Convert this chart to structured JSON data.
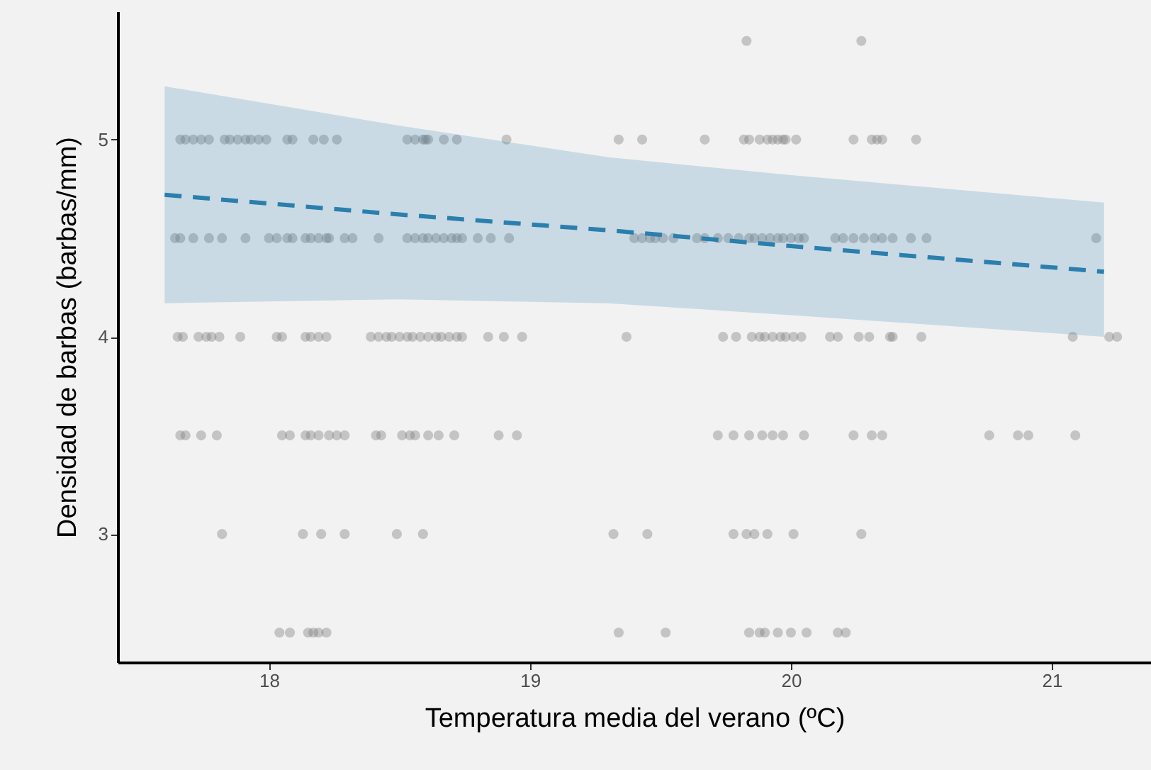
{
  "chart_data": {
    "type": "scatter",
    "xlabel": "Temperatura media del verano (ºC)",
    "ylabel": "Densidad de barbas (barbas/mm)",
    "xlim": [
      17.42,
      21.38
    ],
    "ylim": [
      2.35,
      5.65
    ],
    "xticks": [
      18,
      19,
      20,
      21
    ],
    "yticks": [
      3,
      4,
      5
    ],
    "grid": false,
    "marker": "circle",
    "series": [
      {
        "color": "#808080",
        "x": [
          19.83,
          20.27,
          17.66,
          17.68,
          17.71,
          17.74,
          17.77,
          17.83,
          17.85,
          17.88,
          17.91,
          17.93,
          17.96,
          17.99,
          18.07,
          18.09,
          18.17,
          18.21,
          18.26,
          18.53,
          18.56,
          18.59,
          18.6,
          18.61,
          18.67,
          18.72,
          18.91,
          19.34,
          19.43,
          19.67,
          19.82,
          19.84,
          19.88,
          19.91,
          19.93,
          19.95,
          19.97,
          19.98,
          20.02,
          20.24,
          20.31,
          20.33,
          20.35,
          20.48,
          17.64,
          17.66,
          17.71,
          17.77,
          17.82,
          17.91,
          18.0,
          18.03,
          18.07,
          18.09,
          18.14,
          18.16,
          18.19,
          18.22,
          18.23,
          18.29,
          18.32,
          18.42,
          18.53,
          18.56,
          18.59,
          18.61,
          18.64,
          18.67,
          18.7,
          18.72,
          18.74,
          18.8,
          18.85,
          18.92,
          19.4,
          19.43,
          19.46,
          19.48,
          19.51,
          19.55,
          19.64,
          19.67,
          19.72,
          19.76,
          19.8,
          19.84,
          19.86,
          19.89,
          19.92,
          19.95,
          19.97,
          20.0,
          20.03,
          20.05,
          20.17,
          20.2,
          20.24,
          20.28,
          20.32,
          20.35,
          20.39,
          20.46,
          20.52,
          21.17,
          17.65,
          17.67,
          17.73,
          17.76,
          17.78,
          17.81,
          17.89,
          18.03,
          18.05,
          18.14,
          18.16,
          18.19,
          18.22,
          18.39,
          18.42,
          18.45,
          18.47,
          18.5,
          18.53,
          18.55,
          18.58,
          18.61,
          18.64,
          18.66,
          18.69,
          18.72,
          18.74,
          18.84,
          18.9,
          18.97,
          19.37,
          19.74,
          19.79,
          19.85,
          19.88,
          19.9,
          19.93,
          19.96,
          19.98,
          20.01,
          20.04,
          20.15,
          20.18,
          20.26,
          20.3,
          20.38,
          20.39,
          20.5,
          21.08,
          21.22,
          21.25,
          17.66,
          17.68,
          17.74,
          17.8,
          18.05,
          18.08,
          18.14,
          18.16,
          18.19,
          18.23,
          18.26,
          18.29,
          18.41,
          18.43,
          18.51,
          18.54,
          18.56,
          18.61,
          18.65,
          18.71,
          18.88,
          18.95,
          19.72,
          19.78,
          19.84,
          19.89,
          19.93,
          19.97,
          20.05,
          20.24,
          20.31,
          20.35,
          20.76,
          20.87,
          20.91,
          21.09,
          17.82,
          18.13,
          18.2,
          18.29,
          18.49,
          18.59,
          19.32,
          19.45,
          19.78,
          19.83,
          19.86,
          19.91,
          20.01,
          20.27,
          18.04,
          18.08,
          18.15,
          18.17,
          18.19,
          18.22,
          19.34,
          19.52,
          19.84,
          19.88,
          19.9,
          19.95,
          20.0,
          20.06,
          20.18,
          20.21
        ],
        "values": [
          5.5,
          5.5,
          5,
          5,
          5,
          5,
          5,
          5,
          5,
          5,
          5,
          5,
          5,
          5,
          5,
          5,
          5,
          5,
          5,
          5,
          5,
          5,
          5,
          5,
          5,
          5,
          5,
          5,
          5,
          5,
          5,
          5,
          5,
          5,
          5,
          5,
          5,
          5,
          5,
          5,
          5,
          5,
          5,
          5,
          4.5,
          4.5,
          4.5,
          4.5,
          4.5,
          4.5,
          4.5,
          4.5,
          4.5,
          4.5,
          4.5,
          4.5,
          4.5,
          4.5,
          4.5,
          4.5,
          4.5,
          4.5,
          4.5,
          4.5,
          4.5,
          4.5,
          4.5,
          4.5,
          4.5,
          4.5,
          4.5,
          4.5,
          4.5,
          4.5,
          4.5,
          4.5,
          4.5,
          4.5,
          4.5,
          4.5,
          4.5,
          4.5,
          4.5,
          4.5,
          4.5,
          4.5,
          4.5,
          4.5,
          4.5,
          4.5,
          4.5,
          4.5,
          4.5,
          4.5,
          4.5,
          4.5,
          4.5,
          4.5,
          4.5,
          4.5,
          4.5,
          4.5,
          4.5,
          4.5,
          4,
          4,
          4,
          4,
          4,
          4,
          4,
          4,
          4,
          4,
          4,
          4,
          4,
          4,
          4,
          4,
          4,
          4,
          4,
          4,
          4,
          4,
          4,
          4,
          4,
          4,
          4,
          4,
          4,
          4,
          4,
          4,
          4,
          4,
          4,
          4,
          4,
          4,
          4,
          4,
          4,
          4,
          4,
          4,
          4,
          4,
          4,
          4,
          4,
          4,
          4,
          3.5,
          3.5,
          3.5,
          3.5,
          3.5,
          3.5,
          3.5,
          3.5,
          3.5,
          3.5,
          3.5,
          3.5,
          3.5,
          3.5,
          3.5,
          3.5,
          3.5,
          3.5,
          3.5,
          3.5,
          3.5,
          3.5,
          3.5,
          3.5,
          3.5,
          3.5,
          3.5,
          3.5,
          3.5,
          3.5,
          3.5,
          3.5,
          3.5,
          3.5,
          3.5,
          3.5,
          3,
          3,
          3,
          3,
          3,
          3,
          3,
          3,
          3,
          3,
          3,
          3,
          3,
          3,
          2.5,
          2.5,
          2.5,
          2.5,
          2.5,
          2.5,
          2.5,
          2.5,
          2.5,
          2.5,
          2.5,
          2.5,
          2.5,
          2.5,
          2.5,
          2.5
        ]
      },
      {
        "type": "line",
        "color": "#2a7fad",
        "line_style": "dashed",
        "marker": "none",
        "x": [
          17.6,
          18.5,
          19.3,
          20.0,
          21.2
        ],
        "values": [
          4.72,
          4.62,
          4.54,
          4.46,
          4.33
        ],
        "lower": [
          4.17,
          4.19,
          4.17,
          4.11,
          4.0
        ],
        "upper": [
          5.27,
          5.07,
          4.91,
          4.82,
          4.68
        ]
      }
    ]
  }
}
